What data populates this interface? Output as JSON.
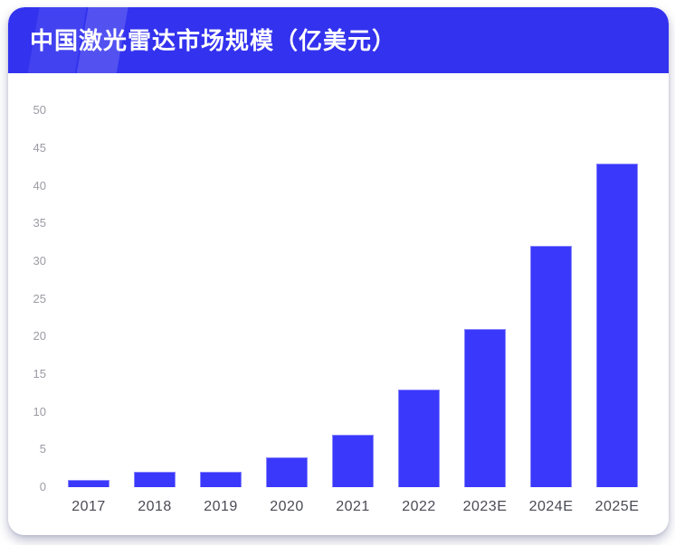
{
  "card": {
    "title": "中国激光雷达市场规模（亿美元）"
  },
  "chart_data": {
    "type": "bar",
    "title": "中国激光雷达市场规模（亿美元）",
    "categories": [
      "2017",
      "2018",
      "2019",
      "2020",
      "2021",
      "2022",
      "2023E",
      "2024E",
      "2025E"
    ],
    "values": [
      1,
      2,
      2,
      4,
      7,
      13,
      21,
      32,
      43
    ],
    "xlabel": "",
    "ylabel": "",
    "ylim": [
      0,
      50
    ],
    "ytick_step": 5,
    "yticks": [
      0,
      5,
      10,
      15,
      20,
      25,
      30,
      35,
      40,
      45,
      50
    ],
    "grid": false,
    "legend": "none",
    "colors": {
      "header_bg": "#3332ef",
      "bar_fill": "#3a38fa",
      "bar_border": "#8886fe",
      "ytick_color": "#9b9ba4",
      "xtick_color": "#4a4a55",
      "title_color": "#ffffff",
      "card_bg": "#ffffff"
    }
  }
}
